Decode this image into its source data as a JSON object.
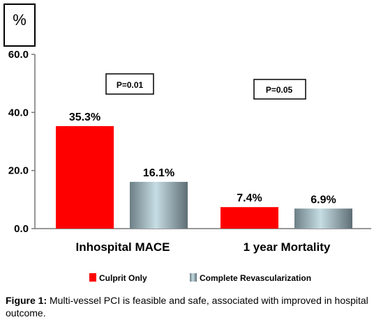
{
  "chart_data": {
    "type": "bar",
    "ylabel": "%",
    "ylim": [
      0,
      60
    ],
    "yticks": [
      "0.0",
      "20.0",
      "40.0",
      "60.0"
    ],
    "ytick_values": [
      0,
      20,
      40,
      60
    ],
    "categories": [
      "Inhospital MACE",
      "1 year Mortality"
    ],
    "series": [
      {
        "name": "Culprit Only",
        "values": [
          35.3,
          7.4
        ],
        "labels": [
          "35.3%",
          "7.4%"
        ],
        "color": "#ff0000"
      },
      {
        "name": "Complete Revascularization",
        "values": [
          16.1,
          6.9
        ],
        "labels": [
          "16.1%",
          "6.9%"
        ],
        "color": "#9fc0cc"
      }
    ],
    "annotations": [
      "P=0.01",
      "P=0.05"
    ],
    "legend_position": "bottom",
    "grid": false
  },
  "caption": {
    "label": "Figure 1:",
    "text": " Multi-vessel PCI is feasible and safe, associated with improved in hospital outcome."
  }
}
